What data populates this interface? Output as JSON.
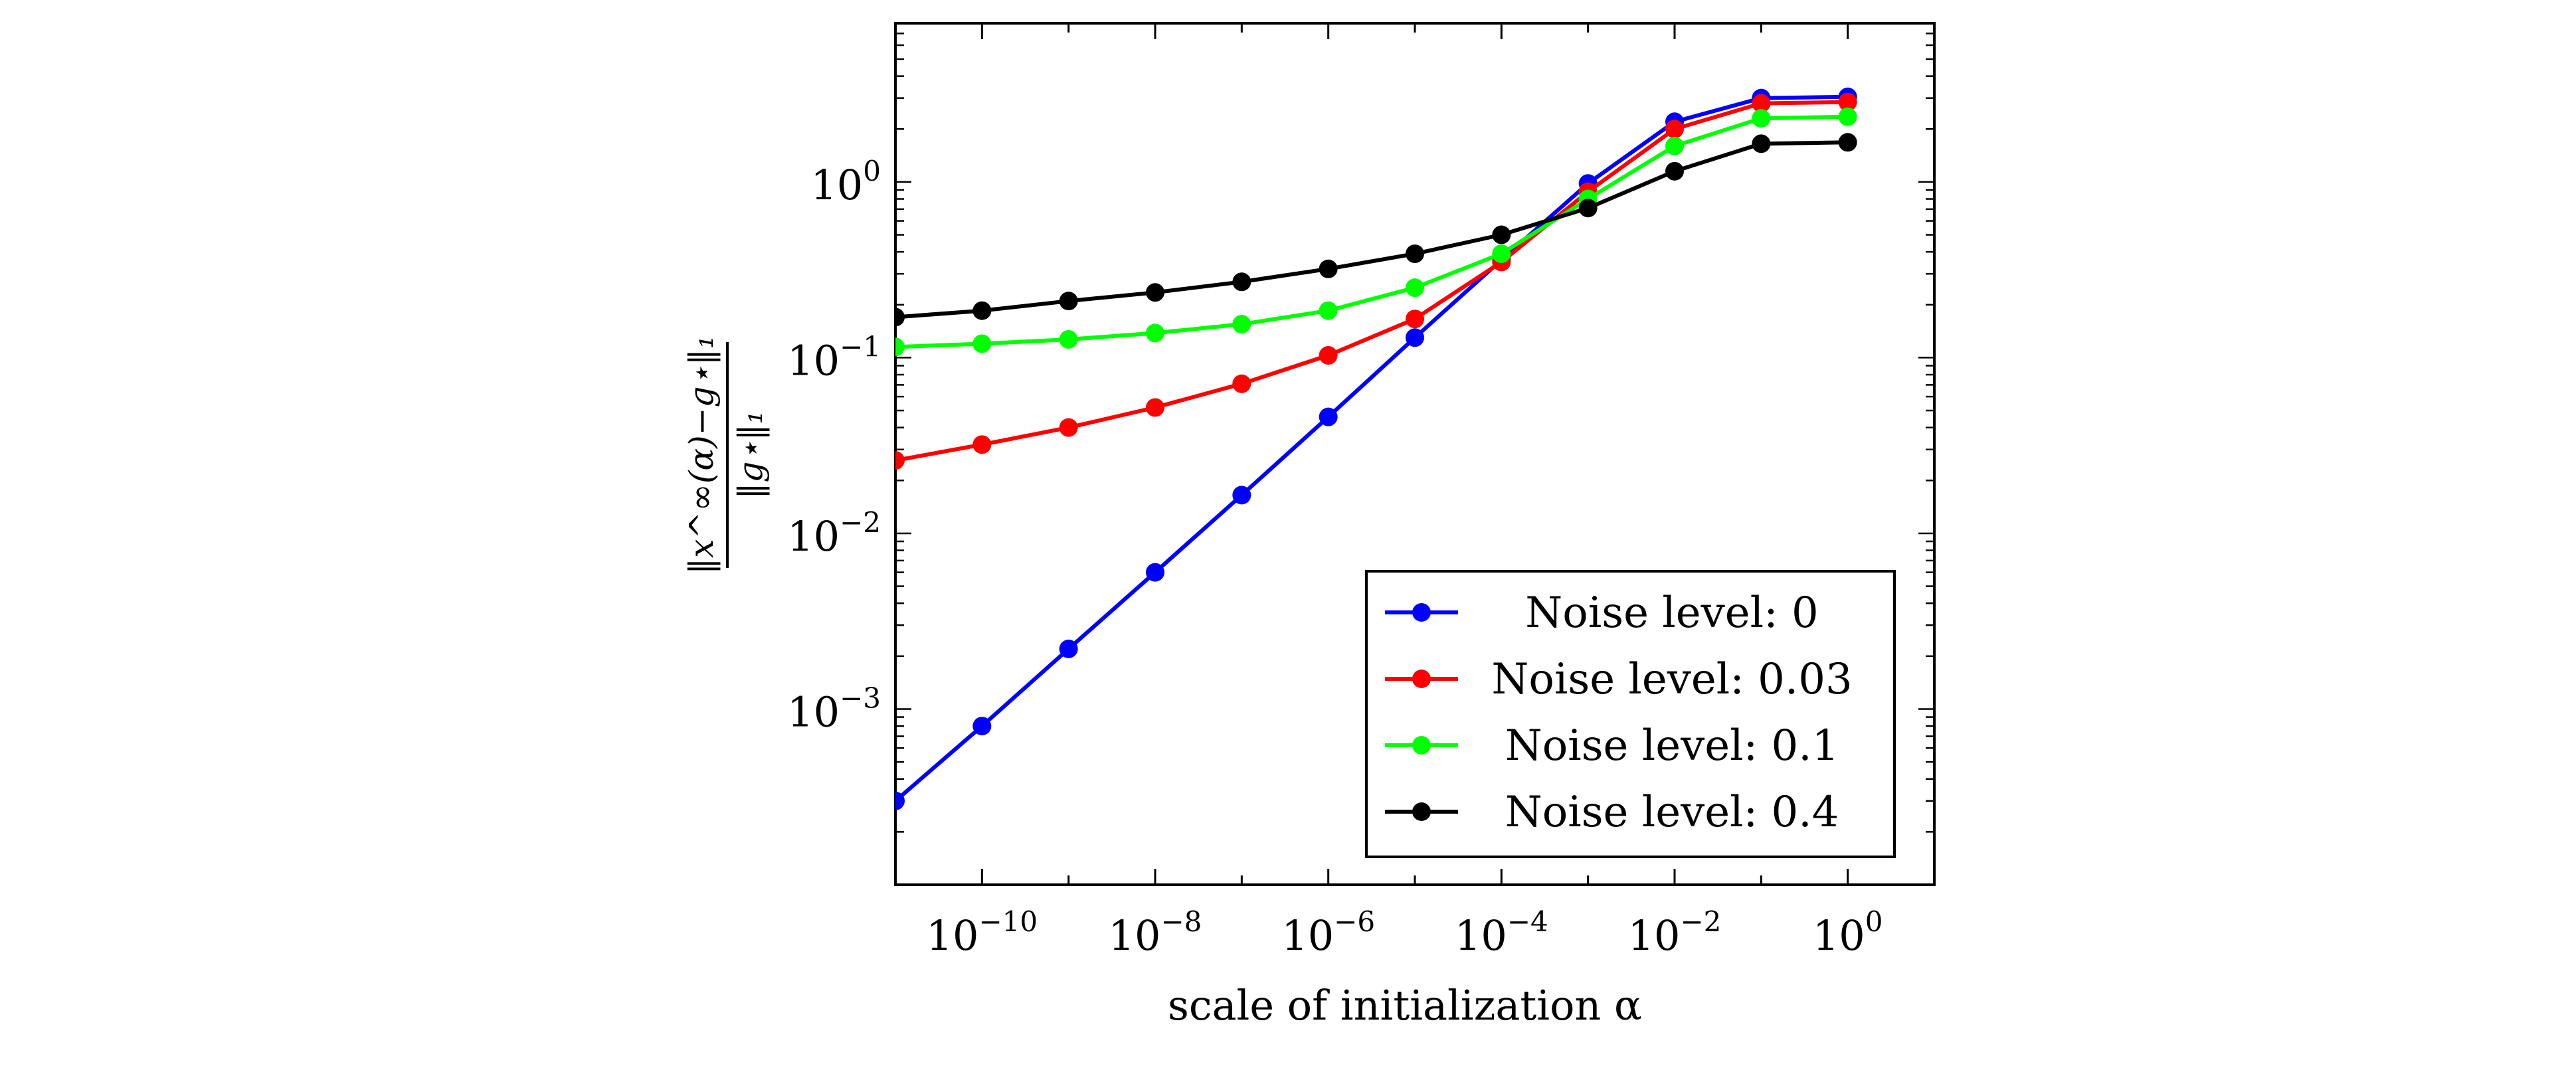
{
  "chart_data": {
    "type": "line",
    "title": "",
    "xlabel": "scale of initialization α",
    "ylabel": {
      "numerator": "‖x^∞(α)−g⋆‖₁",
      "denominator": "‖g⋆‖₁"
    },
    "x_scale": "log",
    "y_scale": "log",
    "xlim": [
      1e-11,
      10
    ],
    "ylim": [
      0.0001,
      8
    ],
    "x_ticks": [
      {
        "value": 1e-10,
        "mantissa": "10",
        "exponent": "−10"
      },
      {
        "value": 1e-08,
        "mantissa": "10",
        "exponent": "−8"
      },
      {
        "value": 1e-06,
        "mantissa": "10",
        "exponent": "−6"
      },
      {
        "value": 0.0001,
        "mantissa": "10",
        "exponent": "−4"
      },
      {
        "value": 0.01,
        "mantissa": "10",
        "exponent": "−2"
      },
      {
        "value": 1,
        "mantissa": "10",
        "exponent": "0"
      }
    ],
    "y_ticks": [
      {
        "value": 0.001,
        "mantissa": "10",
        "exponent": "−3"
      },
      {
        "value": 0.01,
        "mantissa": "10",
        "exponent": "−2"
      },
      {
        "value": 0.1,
        "mantissa": "10",
        "exponent": "−1"
      },
      {
        "value": 1,
        "mantissa": "10",
        "exponent": "0"
      }
    ],
    "grid": false,
    "legend_position": "bottom-right",
    "x": [
      1e-11,
      1e-10,
      1e-09,
      1e-08,
      1e-07,
      1e-06,
      1e-05,
      0.0001,
      0.001,
      0.01,
      0.1,
      1
    ],
    "series": [
      {
        "name": "Noise level: 0",
        "color": "#0000ff",
        "values": [
          0.0003,
          0.0008,
          0.0022,
          0.006,
          0.0165,
          0.046,
          0.13,
          0.36,
          0.98,
          2.2,
          3.0,
          3.05
        ]
      },
      {
        "name": "Noise level: 0.03",
        "color": "#ff0000",
        "values": [
          0.026,
          0.032,
          0.04,
          0.052,
          0.071,
          0.103,
          0.166,
          0.35,
          0.88,
          2.0,
          2.8,
          2.85
        ]
      },
      {
        "name": "Noise level: 0.1",
        "color": "#00ff00",
        "values": [
          0.115,
          0.12,
          0.127,
          0.138,
          0.155,
          0.185,
          0.25,
          0.39,
          0.8,
          1.6,
          2.3,
          2.35
        ]
      },
      {
        "name": "Noise level: 0.4",
        "color": "#000000",
        "values": [
          0.17,
          0.185,
          0.21,
          0.235,
          0.27,
          0.32,
          0.39,
          0.5,
          0.71,
          1.15,
          1.65,
          1.68
        ]
      }
    ]
  }
}
